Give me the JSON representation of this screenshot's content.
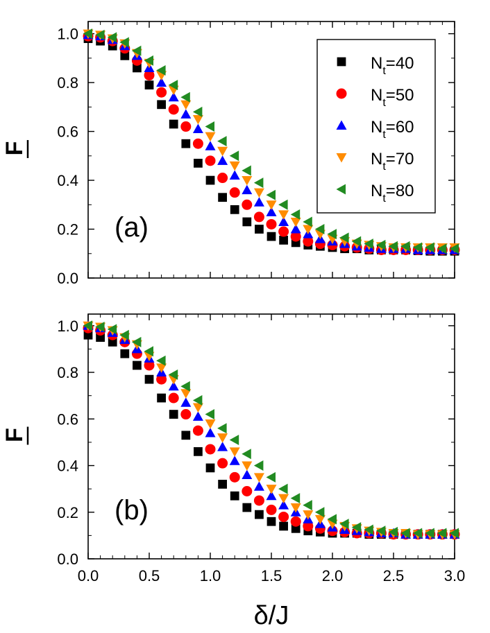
{
  "chart_data": [
    {
      "panel_label": "(a)",
      "type": "scatter",
      "ylabel": "F",
      "ylabel_overbar": true,
      "xlabel": "",
      "xlim": [
        0,
        3.0
      ],
      "ylim": [
        0,
        1.05
      ],
      "xticks": [
        "0.0",
        "0.5",
        "1.0",
        "1.5",
        "2.0",
        "2.5",
        "3.0"
      ],
      "xtick_labels_shown": false,
      "yticks": [
        "0.0",
        "0.2",
        "0.4",
        "0.6",
        "0.8",
        "1.0"
      ],
      "legend": {
        "position": "top-right",
        "entries": [
          {
            "base": "N",
            "sub": "t",
            "rest": "=40",
            "series": 0
          },
          {
            "base": "N",
            "sub": "t",
            "rest": "=50",
            "series": 1
          },
          {
            "base": "N",
            "sub": "t",
            "rest": "=60",
            "series": 2
          },
          {
            "base": "N",
            "sub": "t",
            "rest": "=70",
            "series": 3
          },
          {
            "base": "N",
            "sub": "t",
            "rest": "=80",
            "series": 4
          }
        ]
      },
      "series": [
        {
          "name": "Nt=40",
          "color": "#000000",
          "marker": "square",
          "x": [
            0.0,
            0.1,
            0.2,
            0.3,
            0.4,
            0.5,
            0.6,
            0.7,
            0.8,
            0.9,
            1.0,
            1.1,
            1.2,
            1.3,
            1.4,
            1.5,
            1.6,
            1.7,
            1.8,
            1.9,
            2.0,
            2.1,
            2.2,
            2.3,
            2.4,
            2.5,
            2.6,
            2.7,
            2.8,
            2.9,
            3.0
          ],
          "y": [
            0.98,
            0.97,
            0.95,
            0.91,
            0.86,
            0.79,
            0.71,
            0.63,
            0.55,
            0.47,
            0.4,
            0.33,
            0.28,
            0.23,
            0.2,
            0.17,
            0.155,
            0.145,
            0.135,
            0.13,
            0.125,
            0.12,
            0.12,
            0.115,
            0.115,
            0.115,
            0.115,
            0.112,
            0.11,
            0.11,
            0.11
          ]
        },
        {
          "name": "Nt=50",
          "color": "#ff0000",
          "marker": "circle",
          "x": [
            0.0,
            0.1,
            0.2,
            0.3,
            0.4,
            0.5,
            0.6,
            0.7,
            0.8,
            0.9,
            1.0,
            1.1,
            1.2,
            1.3,
            1.4,
            1.5,
            1.6,
            1.7,
            1.8,
            1.9,
            2.0,
            2.1,
            2.2,
            2.3,
            2.4,
            2.5,
            2.6,
            2.7,
            2.8,
            2.9,
            3.0
          ],
          "y": [
            0.99,
            0.985,
            0.97,
            0.94,
            0.89,
            0.83,
            0.76,
            0.69,
            0.62,
            0.55,
            0.48,
            0.41,
            0.35,
            0.3,
            0.25,
            0.22,
            0.19,
            0.17,
            0.15,
            0.14,
            0.135,
            0.13,
            0.125,
            0.12,
            0.115,
            0.115,
            0.115,
            0.115,
            0.115,
            0.115,
            0.115
          ]
        },
        {
          "name": "Nt=60",
          "color": "#0000ff",
          "marker": "triangle-up",
          "x": [
            0.0,
            0.1,
            0.2,
            0.3,
            0.4,
            0.5,
            0.6,
            0.7,
            0.8,
            0.9,
            1.0,
            1.1,
            1.2,
            1.3,
            1.4,
            1.5,
            1.6,
            1.7,
            1.8,
            1.9,
            2.0,
            2.1,
            2.2,
            2.3,
            2.4,
            2.5,
            2.6,
            2.7,
            2.8,
            2.9,
            3.0
          ],
          "y": [
            0.995,
            0.99,
            0.975,
            0.95,
            0.91,
            0.86,
            0.8,
            0.74,
            0.67,
            0.61,
            0.54,
            0.48,
            0.42,
            0.36,
            0.31,
            0.27,
            0.23,
            0.2,
            0.18,
            0.16,
            0.15,
            0.14,
            0.13,
            0.125,
            0.12,
            0.12,
            0.12,
            0.115,
            0.115,
            0.115,
            0.115
          ]
        },
        {
          "name": "Nt=70",
          "color": "#ff8c00",
          "marker": "triangle-down",
          "x": [
            0.0,
            0.1,
            0.2,
            0.3,
            0.4,
            0.5,
            0.6,
            0.7,
            0.8,
            0.9,
            1.0,
            1.1,
            1.2,
            1.3,
            1.4,
            1.5,
            1.6,
            1.7,
            1.8,
            1.9,
            2.0,
            2.1,
            2.2,
            2.3,
            2.4,
            2.5,
            2.6,
            2.7,
            2.8,
            2.9,
            3.0
          ],
          "y": [
            1.0,
            0.995,
            0.98,
            0.96,
            0.92,
            0.88,
            0.83,
            0.77,
            0.71,
            0.65,
            0.58,
            0.52,
            0.46,
            0.4,
            0.35,
            0.3,
            0.26,
            0.23,
            0.2,
            0.18,
            0.16,
            0.15,
            0.14,
            0.135,
            0.13,
            0.125,
            0.125,
            0.125,
            0.125,
            0.125,
            0.125
          ]
        },
        {
          "name": "Nt=80",
          "color": "#228b22",
          "marker": "triangle-left",
          "x": [
            0.0,
            0.1,
            0.2,
            0.3,
            0.4,
            0.5,
            0.6,
            0.7,
            0.8,
            0.9,
            1.0,
            1.1,
            1.2,
            1.3,
            1.4,
            1.5,
            1.6,
            1.7,
            1.8,
            1.9,
            2.0,
            2.1,
            2.2,
            2.3,
            2.4,
            2.5,
            2.6,
            2.7,
            2.8,
            2.9,
            3.0
          ],
          "y": [
            1.0,
            0.995,
            0.985,
            0.965,
            0.93,
            0.89,
            0.85,
            0.79,
            0.74,
            0.68,
            0.62,
            0.56,
            0.5,
            0.44,
            0.39,
            0.34,
            0.3,
            0.26,
            0.23,
            0.2,
            0.18,
            0.165,
            0.15,
            0.14,
            0.135,
            0.13,
            0.13,
            0.125,
            0.125,
            0.12,
            0.12
          ]
        }
      ]
    },
    {
      "panel_label": "(b)",
      "type": "scatter",
      "ylabel": "F",
      "ylabel_overbar": true,
      "xlabel": "δ/J",
      "xlim": [
        0,
        3.0
      ],
      "ylim": [
        0,
        1.05
      ],
      "xticks": [
        "0.0",
        "0.5",
        "1.0",
        "1.5",
        "2.0",
        "2.5",
        "3.0"
      ],
      "xtick_labels_shown": true,
      "yticks": [
        "0.0",
        "0.2",
        "0.4",
        "0.6",
        "0.8",
        "1.0"
      ],
      "series": [
        {
          "name": "Nt=40",
          "color": "#000000",
          "marker": "square",
          "x": [
            0.0,
            0.1,
            0.2,
            0.3,
            0.4,
            0.5,
            0.6,
            0.7,
            0.8,
            0.9,
            1.0,
            1.1,
            1.2,
            1.3,
            1.4,
            1.5,
            1.6,
            1.7,
            1.8,
            1.9,
            2.0,
            2.1,
            2.2,
            2.3,
            2.4,
            2.5,
            2.6,
            2.7,
            2.8,
            2.9,
            3.0
          ],
          "y": [
            0.96,
            0.95,
            0.93,
            0.88,
            0.83,
            0.77,
            0.69,
            0.62,
            0.53,
            0.46,
            0.39,
            0.32,
            0.27,
            0.22,
            0.19,
            0.16,
            0.14,
            0.13,
            0.12,
            0.115,
            0.11,
            0.11,
            0.11,
            0.105,
            0.105,
            0.105,
            0.105,
            0.105,
            0.105,
            0.105,
            0.105
          ]
        },
        {
          "name": "Nt=50",
          "color": "#ff0000",
          "marker": "circle",
          "x": [
            0.0,
            0.1,
            0.2,
            0.3,
            0.4,
            0.5,
            0.6,
            0.7,
            0.8,
            0.9,
            1.0,
            1.1,
            1.2,
            1.3,
            1.4,
            1.5,
            1.6,
            1.7,
            1.8,
            1.9,
            2.0,
            2.1,
            2.2,
            2.3,
            2.4,
            2.5,
            2.6,
            2.7,
            2.8,
            2.9,
            3.0
          ],
          "y": [
            0.99,
            0.98,
            0.96,
            0.93,
            0.88,
            0.83,
            0.77,
            0.69,
            0.62,
            0.55,
            0.47,
            0.41,
            0.35,
            0.29,
            0.25,
            0.21,
            0.18,
            0.16,
            0.14,
            0.13,
            0.12,
            0.115,
            0.11,
            0.11,
            0.11,
            0.105,
            0.105,
            0.105,
            0.105,
            0.105,
            0.105
          ]
        },
        {
          "name": "Nt=60",
          "color": "#0000ff",
          "marker": "triangle-up",
          "x": [
            0.0,
            0.1,
            0.2,
            0.3,
            0.4,
            0.5,
            0.6,
            0.7,
            0.8,
            0.9,
            1.0,
            1.1,
            1.2,
            1.3,
            1.4,
            1.5,
            1.6,
            1.7,
            1.8,
            1.9,
            2.0,
            2.1,
            2.2,
            2.3,
            2.4,
            2.5,
            2.6,
            2.7,
            2.8,
            2.9,
            3.0
          ],
          "y": [
            1.0,
            0.99,
            0.97,
            0.94,
            0.9,
            0.86,
            0.8,
            0.74,
            0.67,
            0.61,
            0.54,
            0.48,
            0.42,
            0.36,
            0.31,
            0.27,
            0.23,
            0.2,
            0.17,
            0.15,
            0.135,
            0.125,
            0.12,
            0.115,
            0.11,
            0.11,
            0.105,
            0.105,
            0.105,
            0.105,
            0.105
          ]
        },
        {
          "name": "Nt=70",
          "color": "#ff8c00",
          "marker": "triangle-down",
          "x": [
            0.0,
            0.1,
            0.2,
            0.3,
            0.4,
            0.5,
            0.6,
            0.7,
            0.8,
            0.9,
            1.0,
            1.1,
            1.2,
            1.3,
            1.4,
            1.5,
            1.6,
            1.7,
            1.8,
            1.9,
            2.0,
            2.1,
            2.2,
            2.3,
            2.4,
            2.5,
            2.6,
            2.7,
            2.8,
            2.9,
            3.0
          ],
          "y": [
            1.0,
            0.995,
            0.98,
            0.95,
            0.92,
            0.87,
            0.82,
            0.77,
            0.71,
            0.65,
            0.58,
            0.52,
            0.46,
            0.4,
            0.35,
            0.3,
            0.26,
            0.22,
            0.19,
            0.17,
            0.15,
            0.14,
            0.13,
            0.12,
            0.115,
            0.11,
            0.11,
            0.105,
            0.105,
            0.105,
            0.105
          ]
        },
        {
          "name": "Nt=80",
          "color": "#228b22",
          "marker": "triangle-left",
          "x": [
            0.0,
            0.1,
            0.2,
            0.3,
            0.4,
            0.5,
            0.6,
            0.7,
            0.8,
            0.9,
            1.0,
            1.1,
            1.2,
            1.3,
            1.4,
            1.5,
            1.6,
            1.7,
            1.8,
            1.9,
            2.0,
            2.1,
            2.2,
            2.3,
            2.4,
            2.5,
            2.6,
            2.7,
            2.8,
            2.9,
            3.0
          ],
          "y": [
            1.0,
            0.995,
            0.985,
            0.96,
            0.93,
            0.89,
            0.85,
            0.79,
            0.74,
            0.68,
            0.62,
            0.56,
            0.51,
            0.45,
            0.4,
            0.35,
            0.3,
            0.26,
            0.23,
            0.2,
            0.17,
            0.15,
            0.135,
            0.125,
            0.12,
            0.115,
            0.11,
            0.11,
            0.11,
            0.11,
            0.11
          ]
        }
      ]
    }
  ]
}
